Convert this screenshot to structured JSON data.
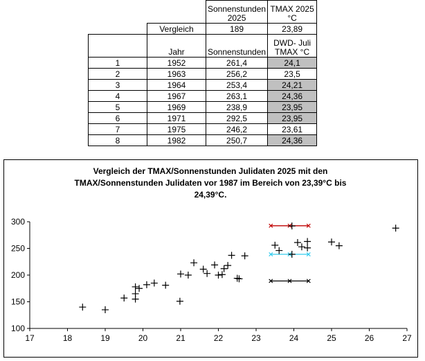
{
  "table": {
    "header_top": [
      "",
      "",
      "Sonnenstunden 2025",
      "TMAX 2025 °C"
    ],
    "vergleich": {
      "label": "Vergleich",
      "sonnen": "189",
      "tmax": "23,89"
    },
    "header2": {
      "jahr": "Jahr",
      "sonnen": "Sonnenstunden",
      "tmax": "DWD- Juli TMAX °C"
    },
    "rows": [
      {
        "n": "1",
        "jahr": "1952",
        "sonnen": "261,4",
        "tmax": "24,1",
        "gray": true
      },
      {
        "n": "2",
        "jahr": "1963",
        "sonnen": "256,2",
        "tmax": "23,5",
        "gray": false
      },
      {
        "n": "3",
        "jahr": "1964",
        "sonnen": "253,4",
        "tmax": "24,21",
        "gray": true
      },
      {
        "n": "4",
        "jahr": "1967",
        "sonnen": "263,1",
        "tmax": "24,36",
        "gray": true
      },
      {
        "n": "5",
        "jahr": "1969",
        "sonnen": "238,9",
        "tmax": "23,95",
        "gray": true
      },
      {
        "n": "6",
        "jahr": "1971",
        "sonnen": "292,5",
        "tmax": "23,95",
        "gray": true
      },
      {
        "n": "7",
        "jahr": "1975",
        "sonnen": "246,2",
        "tmax": "23,61",
        "gray": false
      },
      {
        "n": "8",
        "jahr": "1982",
        "sonnen": "250,7",
        "tmax": "24,36",
        "gray": true
      }
    ]
  },
  "chart_data": {
    "type": "scatter",
    "title": "Vergleich der TMAX/Sonnenstunden Julidaten 2025 mit den TMAX/Sonnenstunden Julidaten vor 1987 im Bereich von 23,39°C bis 24,39°C.",
    "title_lines": [
      "Vergleich der TMAX/Sonnenstunden Julidaten 2025 mit den",
      "TMAX/Sonnenstunden Julidaten vor 1987 im Bereich von 23,39°C bis",
      "24,39°C."
    ],
    "xlim": [
      17,
      27
    ],
    "ylim": [
      100,
      300
    ],
    "xticks": [
      "17",
      "18",
      "19",
      "20",
      "21",
      "22",
      "23",
      "24",
      "25",
      "26",
      "27"
    ],
    "yticks": [
      "100",
      "150",
      "200",
      "250",
      "300"
    ],
    "grid": false,
    "legend": "none",
    "colors": {
      "points": "#000000",
      "black_line": "#000000",
      "red_line": "#c00000",
      "cyan_line": "#33ccee"
    },
    "points": [
      [
        18.4,
        140
      ],
      [
        19.0,
        135
      ],
      [
        19.5,
        157
      ],
      [
        19.8,
        178
      ],
      [
        19.8,
        165
      ],
      [
        19.8,
        155
      ],
      [
        19.9,
        175
      ],
      [
        20.1,
        182
      ],
      [
        20.3,
        185
      ],
      [
        20.6,
        181
      ],
      [
        21.0,
        202
      ],
      [
        20.98,
        151
      ],
      [
        21.2,
        200
      ],
      [
        21.35,
        223
      ],
      [
        21.6,
        211
      ],
      [
        21.7,
        203
      ],
      [
        21.9,
        219
      ],
      [
        22.0,
        200
      ],
      [
        22.1,
        201
      ],
      [
        22.15,
        212
      ],
      [
        22.25,
        218
      ],
      [
        22.35,
        237
      ],
      [
        22.5,
        194
      ],
      [
        22.55,
        193
      ],
      [
        22.7,
        236
      ],
      [
        23.5,
        256
      ],
      [
        23.61,
        246
      ],
      [
        23.95,
        239
      ],
      [
        24.1,
        261
      ],
      [
        24.21,
        253
      ],
      [
        24.36,
        263
      ],
      [
        24.36,
        251
      ],
      [
        23.95,
        292
      ],
      [
        25.0,
        262
      ],
      [
        25.2,
        255
      ],
      [
        26.7,
        288
      ]
    ],
    "lines": [
      {
        "color_key": "black_line",
        "x": [
          23.39,
          23.89,
          24.39
        ],
        "y": [
          189,
          189,
          189
        ]
      },
      {
        "color_key": "red_line",
        "x": [
          23.39,
          23.89,
          24.39
        ],
        "y": [
          292.5,
          292.5,
          292.5
        ]
      },
      {
        "color_key": "cyan_line",
        "x": [
          23.39,
          23.89,
          24.39
        ],
        "y": [
          238.9,
          238.9,
          238.9
        ]
      }
    ]
  }
}
